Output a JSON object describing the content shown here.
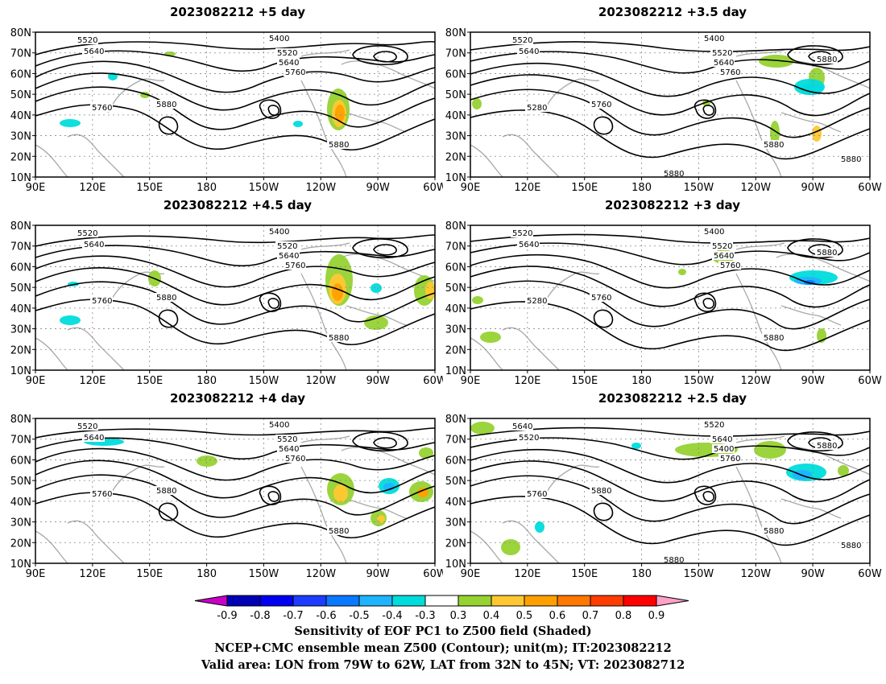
{
  "panels": [
    {
      "title": "2023082212  +5 day",
      "contour_labels": [
        "5520",
        "5640",
        "5400",
        "5520",
        "5640",
        "5760",
        "5760",
        "5880",
        "5880"
      ]
    },
    {
      "title": "2023082212  +3.5  day",
      "contour_labels": [
        "5520",
        "5640",
        "5400",
        "5520",
        "5640",
        "5760",
        "5280",
        "5760",
        "5880",
        "5880",
        "5880",
        "5880"
      ]
    },
    {
      "title": "2023082212  +4.5  day",
      "contour_labels": [
        "5520",
        "5640",
        "5400",
        "5520",
        "5640",
        "5760",
        "5760",
        "5880",
        "5880"
      ]
    },
    {
      "title": "2023082212  +3  day",
      "contour_labels": [
        "5520",
        "5640",
        "5400",
        "5520",
        "5640",
        "5760",
        "5280",
        "5760",
        "5880",
        "5880"
      ]
    },
    {
      "title": "2023082212  +4 day",
      "contour_labels": [
        "5520",
        "5640",
        "5400",
        "5520",
        "5640",
        "5760",
        "5760",
        "5880",
        "5880"
      ]
    },
    {
      "title": "2023082212  +2.5  day",
      "contour_labels": [
        "5640",
        "5520",
        "5520",
        "5640",
        "5400",
        "5760",
        "5760",
        "5880",
        "5880",
        "5880",
        "5880",
        "5880"
      ]
    }
  ],
  "lat_ticks": [
    "80N",
    "70N",
    "60N",
    "50N",
    "40N",
    "30N",
    "20N",
    "10N"
  ],
  "lon_ticks": [
    "90E",
    "120E",
    "150E",
    "180",
    "150W",
    "120W",
    "90W",
    "60W"
  ],
  "colorbar": {
    "ticks": [
      "-0.9",
      "-0.8",
      "-0.7",
      "-0.6",
      "-0.5",
      "-0.4",
      "-0.3",
      "0.3",
      "0.4",
      "0.5",
      "0.6",
      "0.7",
      "0.8",
      "0.9"
    ],
    "colors": [
      "#c800c8",
      "#0000b4",
      "#0000f0",
      "#1e3cff",
      "#0a78ff",
      "#1eb4ff",
      "#00dcdc",
      "#ffffff",
      "#96d232",
      "#ffc832",
      "#ffa000",
      "#ff7800",
      "#ff3c00",
      "#ff0000",
      "#ffa0c8"
    ]
  },
  "caption": {
    "line1": "Sensitivity of EOF PC1 to Z500 field (Shaded)",
    "line2": "NCEP+CMC ensemble mean Z500 (Contour); unit(m); IT:2023082212",
    "line3": "Valid area: LON from 79W to 62W, LAT from 32N to 45N; VT: 2023082712"
  }
}
